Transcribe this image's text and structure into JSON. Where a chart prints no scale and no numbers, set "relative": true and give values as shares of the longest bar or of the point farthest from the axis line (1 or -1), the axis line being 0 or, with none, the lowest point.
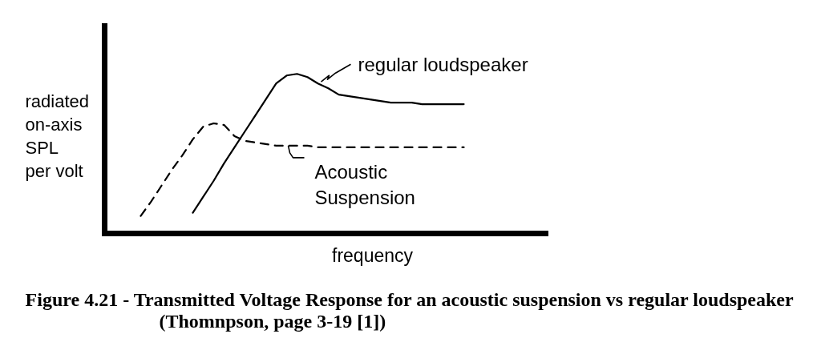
{
  "chart_data": {
    "type": "line",
    "title": "Figure 4.21 - Transmitted Voltage Response for an acoustic suspension vs regular loudspeaker",
    "xlabel": "frequency",
    "ylabel": "radiated\non-axis\nSPL\nper volt",
    "annotations": [
      "(Thomnpson, page 3-19 [1])"
    ],
    "relative": true,
    "categories": [
      null,
      null,
      null,
      null,
      null,
      null,
      null,
      null,
      null,
      null,
      null,
      null,
      null,
      null,
      null,
      null,
      null,
      null,
      null,
      null,
      null,
      null,
      null,
      null,
      null,
      null,
      null,
      null,
      null,
      null,
      null,
      null
    ],
    "series": [
      {
        "name": "regular loudspeaker",
        "color": "#000000",
        "line_style": "solid",
        "values": [
          null,
          null,
          null,
          null,
          null,
          0.13,
          0.23,
          0.33,
          0.44,
          0.54,
          0.64,
          0.74,
          0.84,
          0.94,
          0.99,
          1.0,
          0.98,
          0.94,
          0.91,
          0.87,
          0.86,
          0.85,
          0.84,
          0.83,
          0.82,
          0.82,
          0.82,
          0.81,
          0.81,
          0.81,
          0.81,
          0.81
        ]
      },
      {
        "name": "Acoustic\nSuspension",
        "color": "#000000",
        "line_style": "dashed",
        "values": [
          0.11,
          0.2,
          0.3,
          0.4,
          0.49,
          0.59,
          0.67,
          0.69,
          0.68,
          0.61,
          0.58,
          0.57,
          0.56,
          0.55,
          0.55,
          0.55,
          0.55,
          0.54,
          0.54,
          0.54,
          0.54,
          0.54,
          0.54,
          0.54,
          0.54,
          0.54,
          0.54,
          0.54,
          0.54,
          0.54,
          0.54,
          0.54
        ]
      }
    ]
  }
}
